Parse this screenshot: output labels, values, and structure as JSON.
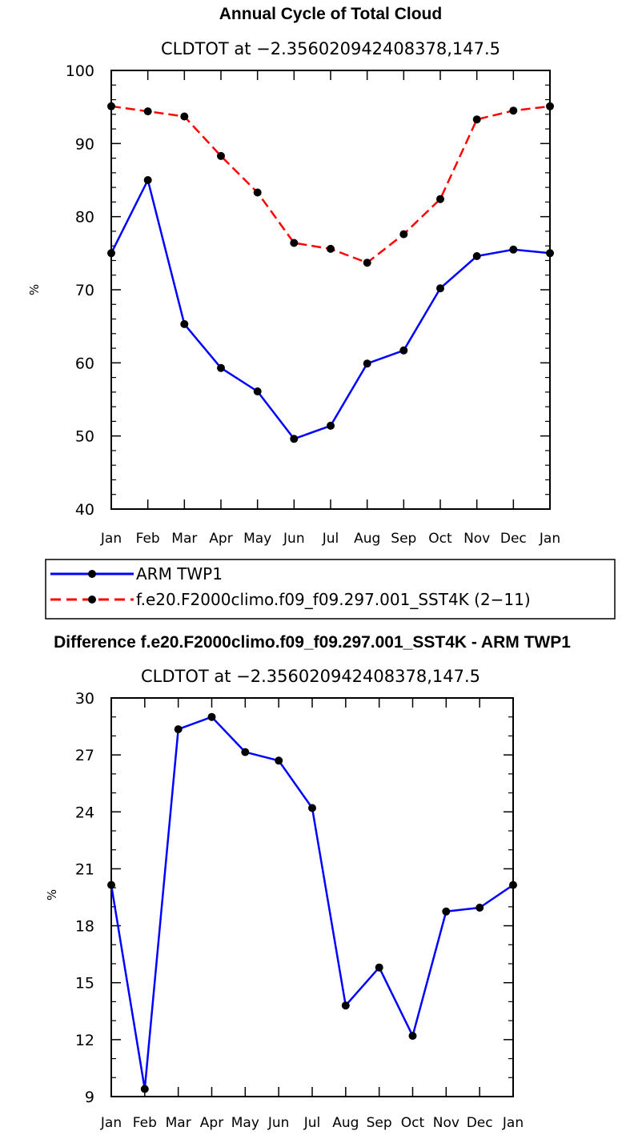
{
  "chart_data": [
    {
      "type": "line",
      "title": "Annual Cycle of Total Cloud",
      "subtitle": "CLDTOT at −2.356020942408378,147.5",
      "xlabel": "",
      "ylabel": "%",
      "ylim": [
        40,
        100
      ],
      "yticks": [
        "40",
        "50",
        "60",
        "70",
        "80",
        "90",
        "100"
      ],
      "categories": [
        "Jan",
        "Feb",
        "Mar",
        "Apr",
        "May",
        "Jun",
        "Jul",
        "Aug",
        "Sep",
        "Oct",
        "Nov",
        "Dec",
        "Jan"
      ],
      "series": [
        {
          "name": "ARM TWP1",
          "color": "#0000ff",
          "dash": "solid",
          "values": [
            75.0,
            85.0,
            65.3,
            59.3,
            56.1,
            49.6,
            51.4,
            59.9,
            61.7,
            70.2,
            74.6,
            75.5,
            75.0
          ]
        },
        {
          "name": "f.e20.F2000climo.f09_f09.297.001_SST4K (2−11)",
          "color": "#ff0000",
          "dash": "dashed",
          "values": [
            95.1,
            94.4,
            93.7,
            88.3,
            83.3,
            76.4,
            75.6,
            73.7,
            77.6,
            82.4,
            93.3,
            94.5,
            95.1
          ]
        }
      ],
      "legend_position": "below"
    },
    {
      "type": "line",
      "title": "Difference f.e20.F2000climo.f09_f09.297.001_SST4K - ARM TWP1",
      "subtitle": "CLDTOT at −2.356020942408378,147.5",
      "xlabel": "",
      "ylabel": "%",
      "ylim": [
        9,
        30
      ],
      "yticks": [
        "9",
        "12",
        "15",
        "18",
        "21",
        "24",
        "27",
        "30"
      ],
      "categories": [
        "Jan",
        "Feb",
        "Mar",
        "Apr",
        "May",
        "Jun",
        "Jul",
        "Aug",
        "Sep",
        "Oct",
        "Nov",
        "Dec",
        "Jan"
      ],
      "series": [
        {
          "name": "Difference",
          "color": "#0000ff",
          "dash": "solid",
          "values": [
            20.15,
            9.4,
            28.35,
            29.0,
            27.15,
            26.7,
            24.2,
            13.8,
            15.8,
            12.2,
            18.75,
            18.95,
            20.15
          ]
        }
      ]
    }
  ]
}
